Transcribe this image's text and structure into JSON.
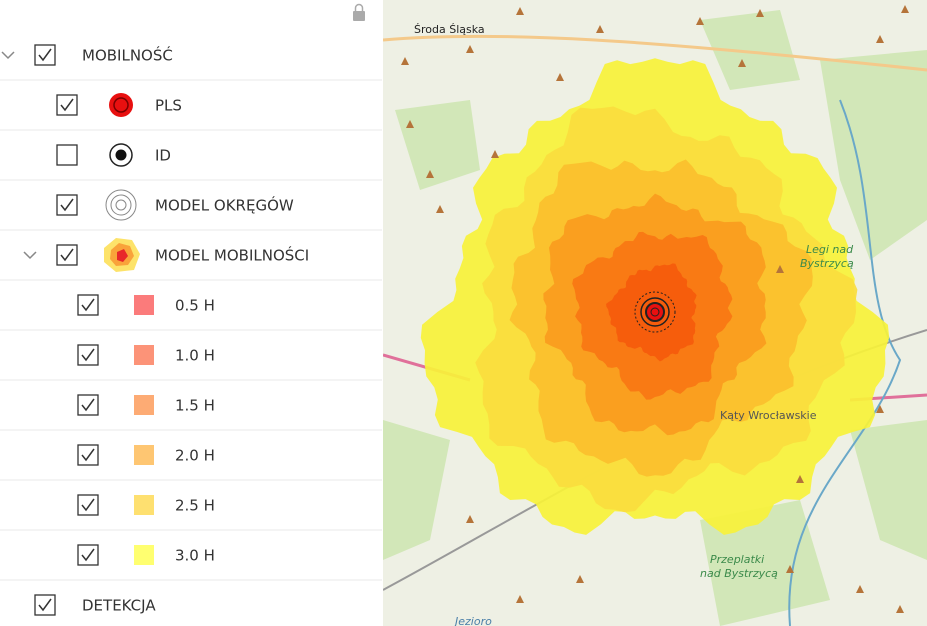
{
  "layers": [
    {
      "label": "MOBILNOŚĆ",
      "checked": true,
      "expanded": true,
      "children": [
        {
          "label": "PLS",
          "checked": true
        },
        {
          "label": "ID",
          "checked": false
        },
        {
          "label": "MODEL OKRĘGÓW",
          "checked": true
        },
        {
          "label": "MODEL MOBILNOŚCI",
          "checked": true,
          "expanded": true,
          "children": [
            {
              "label": "0.5 H",
              "checked": true,
              "color": "#fb7b7b"
            },
            {
              "label": "1.0 H",
              "checked": true,
              "color": "#fc9378"
            },
            {
              "label": "1.5 H",
              "checked": true,
              "color": "#fdab74"
            },
            {
              "label": "2.0 H",
              "checked": true,
              "color": "#fec672"
            },
            {
              "label": "2.5 H",
              "checked": true,
              "color": "#fee070"
            },
            {
              "label": "3.0 H",
              "checked": true,
              "color": "#ffff70"
            }
          ]
        }
      ]
    },
    {
      "label": "DETEKCJA",
      "checked": true
    }
  ],
  "map": {
    "labels": [
      "Środa Śląska",
      "Legi nad",
      "Bystrzycą",
      "Kąty Wrocławskie",
      "Przeplatki",
      "nad Bystrzycą",
      "Jezioro"
    ]
  }
}
